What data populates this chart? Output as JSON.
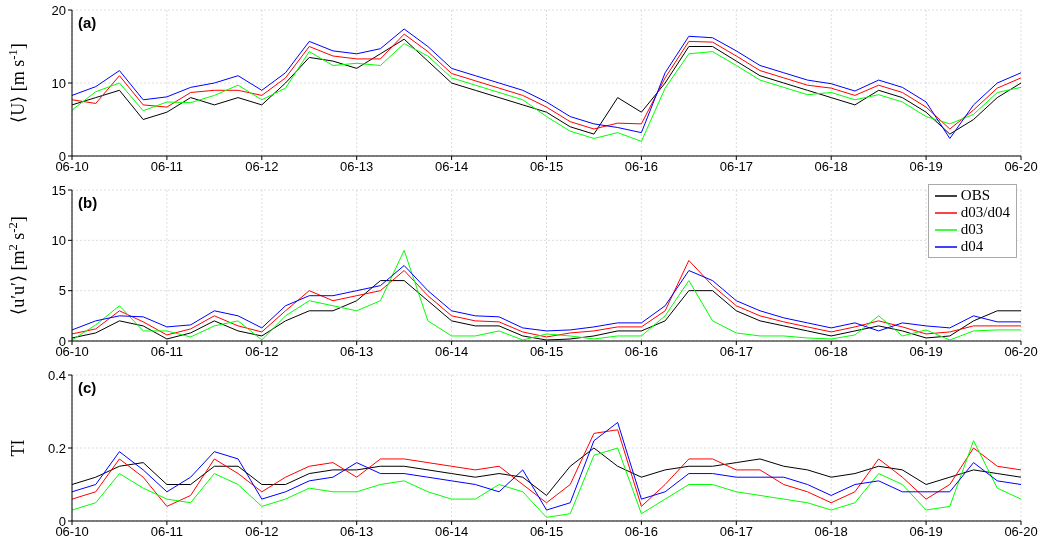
{
  "chart_data": [
    {
      "type": "line",
      "ylabel": "⟨U⟩ [m s$^{-1}$]",
      "annotations": [
        "(a)"
      ],
      "grid": true,
      "line_style": "solid",
      "x": [
        "--06-10T00:00",
        "--06-10T06:00",
        "--06-10T12:00",
        "--06-10T18:00",
        "--06-11T00:00",
        "--06-11T06:00",
        "--06-11T12:00",
        "--06-11T18:00",
        "--06-12T00:00",
        "--06-12T06:00",
        "--06-12T12:00",
        "--06-12T18:00",
        "--06-13T00:00",
        "--06-13T06:00",
        "--06-13T12:00",
        "--06-13T18:00",
        "--06-14T00:00",
        "--06-14T06:00",
        "--06-14T12:00",
        "--06-14T18:00",
        "--06-15T00:00",
        "--06-15T06:00",
        "--06-15T12:00",
        "--06-15T18:00",
        "--06-16T00:00",
        "--06-16T06:00",
        "--06-16T12:00",
        "--06-16T18:00",
        "--06-17T00:00",
        "--06-17T06:00",
        "--06-17T12:00",
        "--06-17T18:00",
        "--06-18T00:00",
        "--06-18T06:00",
        "--06-18T12:00",
        "--06-18T18:00",
        "--06-19T00:00",
        "--06-19T06:00",
        "--06-19T12:00",
        "--06-19T18:00",
        "--06-20T00:00"
      ],
      "xlim": [
        "--06-10",
        "--06-20"
      ],
      "xticks": [
        {
          "value": "--06-10",
          "label": "06-10"
        },
        {
          "value": "--06-11",
          "label": "06-11"
        },
        {
          "value": "--06-12",
          "label": "06-12"
        },
        {
          "value": "--06-13",
          "label": "06-13"
        },
        {
          "value": "--06-14",
          "label": "06-14"
        },
        {
          "value": "--06-15",
          "label": "06-15"
        },
        {
          "value": "--06-16",
          "label": "06-16"
        },
        {
          "value": "--06-17",
          "label": "06-17"
        },
        {
          "value": "--06-18",
          "label": "06-18"
        },
        {
          "value": "--06-19",
          "label": "06-19"
        },
        {
          "value": "--06-20",
          "label": "06-20"
        }
      ],
      "ylim": [
        0,
        20
      ],
      "yticks": [
        0,
        10,
        20
      ],
      "series": [
        {
          "color": "#000000",
          "values": [
            7,
            8,
            9,
            5,
            6,
            8,
            7,
            8,
            7,
            10,
            13.5,
            13,
            12,
            14,
            16,
            13,
            10,
            9,
            8,
            7,
            6,
            4,
            3,
            8,
            6,
            10,
            15,
            15,
            13,
            11,
            10,
            9,
            8,
            7,
            9,
            8,
            6,
            3,
            5,
            8,
            10
          ]
        },
        {
          "color": "#ff0000",
          "values": [
            7.7,
            7.2,
            11,
            7,
            6.7,
            8.7,
            9,
            9,
            8.3,
            10.7,
            15,
            13.7,
            13.3,
            13.3,
            16.7,
            14.3,
            11.3,
            10.3,
            9.3,
            8.3,
            6.7,
            4.7,
            3.7,
            4.5,
            4.4,
            10.7,
            15.7,
            15.6,
            13.7,
            11.7,
            10.7,
            9.7,
            9.3,
            8.3,
            9.7,
            8.7,
            6.7,
            3.7,
            6.3,
            9.3,
            10.7
          ]
        },
        {
          "color": "#00ff00",
          "values": [
            6.3,
            8.8,
            10,
            6.2,
            7.4,
            7.3,
            8.3,
            9.7,
            7.7,
            9.3,
            14.3,
            12.4,
            12.7,
            12.4,
            15.4,
            13.7,
            10.7,
            9.7,
            8.7,
            7.7,
            5.4,
            3.4,
            2.4,
            3.2,
            2,
            9.3,
            14,
            14.3,
            12.4,
            10.4,
            9.4,
            8.4,
            8.7,
            7.7,
            8.4,
            7.4,
            5.4,
            4.4,
            5.7,
            8.7,
            9.4
          ]
        },
        {
          "color": "#0000ff",
          "values": [
            8.3,
            9.5,
            11.7,
            7.7,
            8.1,
            9.4,
            10,
            11,
            9,
            11.4,
            15.7,
            14.4,
            14,
            14.7,
            17.4,
            15,
            12,
            11,
            10,
            9,
            7.4,
            5.4,
            4.4,
            3.9,
            3.2,
            11.4,
            16.4,
            16.2,
            14.4,
            12.4,
            11.4,
            10.4,
            9.9,
            8.9,
            10.4,
            9.4,
            7.4,
            2.4,
            7,
            10,
            11.4
          ]
        }
      ]
    },
    {
      "type": "line",
      "ylabel": "⟨u′u′⟩ [m$^{2}$ s$^{-2}$]",
      "annotations": [
        "(b)"
      ],
      "grid": true,
      "line_style": "solid",
      "legend": "top right",
      "x": [
        "--06-10T00:00",
        "--06-10T06:00",
        "--06-10T12:00",
        "--06-10T18:00",
        "--06-11T00:00",
        "--06-11T06:00",
        "--06-11T12:00",
        "--06-11T18:00",
        "--06-12T00:00",
        "--06-12T06:00",
        "--06-12T12:00",
        "--06-12T18:00",
        "--06-13T00:00",
        "--06-13T06:00",
        "--06-13T12:00",
        "--06-13T18:00",
        "--06-14T00:00",
        "--06-14T06:00",
        "--06-14T12:00",
        "--06-14T18:00",
        "--06-15T00:00",
        "--06-15T06:00",
        "--06-15T12:00",
        "--06-15T18:00",
        "--06-16T00:00",
        "--06-16T06:00",
        "--06-16T12:00",
        "--06-16T18:00",
        "--06-17T00:00",
        "--06-17T06:00",
        "--06-17T12:00",
        "--06-17T18:00",
        "--06-18T00:00",
        "--06-18T06:00",
        "--06-18T12:00",
        "--06-18T18:00",
        "--06-19T00:00",
        "--06-19T06:00",
        "--06-19T12:00",
        "--06-19T18:00",
        "--06-20T00:00"
      ],
      "xlim": [
        "--06-10",
        "--06-20"
      ],
      "xticks": [
        {
          "value": "--06-10",
          "label": "06-10"
        },
        {
          "value": "--06-11",
          "label": "06-11"
        },
        {
          "value": "--06-12",
          "label": "06-12"
        },
        {
          "value": "--06-13",
          "label": "06-13"
        },
        {
          "value": "--06-14",
          "label": "06-14"
        },
        {
          "value": "--06-15",
          "label": "06-15"
        },
        {
          "value": "--06-16",
          "label": "06-16"
        },
        {
          "value": "--06-17",
          "label": "06-17"
        },
        {
          "value": "--06-18",
          "label": "06-18"
        },
        {
          "value": "--06-19",
          "label": "06-19"
        },
        {
          "value": "--06-20",
          "label": "06-20"
        }
      ],
      "ylim": [
        0,
        15
      ],
      "yticks": [
        0,
        5,
        10,
        15
      ],
      "series": [
        {
          "name": "OBS",
          "color": "#000000",
          "values": [
            0.3,
            0.8,
            2,
            1.5,
            0.2,
            0.8,
            2,
            1,
            0.5,
            2,
            3,
            3,
            4,
            6,
            6,
            4,
            2,
            1.5,
            1.5,
            0.5,
            0.1,
            0.2,
            0.5,
            1,
            1,
            2,
            5,
            5,
            3,
            2,
            1.5,
            1,
            0.5,
            1,
            1.5,
            1,
            0.3,
            0.5,
            2,
            3,
            3
          ]
        },
        {
          "name": "d03/d04",
          "color": "#ff0000",
          "values": [
            0.7,
            1.2,
            3,
            1.9,
            0.6,
            1.2,
            2.5,
            1.5,
            0.9,
            3,
            5,
            4,
            4.5,
            5,
            7,
            4.5,
            2.5,
            2,
            1.9,
            0.9,
            0.4,
            0.8,
            1,
            1.4,
            1.4,
            3,
            8,
            5.5,
            3.5,
            2.5,
            1.9,
            1.4,
            0.9,
            1.4,
            2,
            1.4,
            0.7,
            0.9,
            1.5,
            1.5,
            1.5
          ]
        },
        {
          "name": "d03",
          "color": "#00ff00",
          "values": [
            0.1,
            1.6,
            3.5,
            1,
            1,
            0.4,
            1.5,
            2,
            0.1,
            2.5,
            4,
            3.5,
            3,
            4,
            9,
            2,
            0.5,
            0.5,
            1,
            0.1,
            0.7,
            0.5,
            0.2,
            0.5,
            0.5,
            2.5,
            6,
            2,
            0.8,
            0.5,
            0.5,
            0.3,
            0.2,
            0.6,
            2.5,
            0.5,
            1.1,
            0.1,
            1,
            1.1,
            1.1
          ]
        },
        {
          "name": "d04",
          "color": "#0000ff",
          "values": [
            1.1,
            2,
            2.5,
            2.4,
            1.4,
            1.6,
            3,
            2.5,
            1.3,
            3.5,
            4.5,
            4.5,
            5,
            5.5,
            7.5,
            5,
            3,
            2.5,
            2.4,
            1.3,
            1,
            1.1,
            1.4,
            1.8,
            1.8,
            3.5,
            7,
            6,
            4,
            3,
            2.3,
            1.8,
            1.3,
            1.8,
            1,
            1.8,
            1.5,
            1.3,
            2.5,
            1.9,
            1.9
          ]
        }
      ]
    },
    {
      "type": "line",
      "ylabel": "TI",
      "annotations": [
        "(c)"
      ],
      "grid": true,
      "line_style": "solid",
      "x": [
        "--06-10T00:00",
        "--06-10T06:00",
        "--06-10T12:00",
        "--06-10T18:00",
        "--06-11T00:00",
        "--06-11T06:00",
        "--06-11T12:00",
        "--06-11T18:00",
        "--06-12T00:00",
        "--06-12T06:00",
        "--06-12T12:00",
        "--06-12T18:00",
        "--06-13T00:00",
        "--06-13T06:00",
        "--06-13T12:00",
        "--06-13T18:00",
        "--06-14T00:00",
        "--06-14T06:00",
        "--06-14T12:00",
        "--06-14T18:00",
        "--06-15T00:00",
        "--06-15T06:00",
        "--06-15T12:00",
        "--06-15T18:00",
        "--06-16T00:00",
        "--06-16T06:00",
        "--06-16T12:00",
        "--06-16T18:00",
        "--06-17T00:00",
        "--06-17T06:00",
        "--06-17T12:00",
        "--06-17T18:00",
        "--06-18T00:00",
        "--06-18T06:00",
        "--06-18T12:00",
        "--06-18T18:00",
        "--06-19T00:00",
        "--06-19T06:00",
        "--06-19T12:00",
        "--06-19T18:00",
        "--06-20T00:00"
      ],
      "xlim": [
        "--06-10",
        "--06-20"
      ],
      "xticks": [
        {
          "value": "--06-10",
          "label": "06-10"
        },
        {
          "value": "--06-11",
          "label": "06-11"
        },
        {
          "value": "--06-12",
          "label": "06-12"
        },
        {
          "value": "--06-13",
          "label": "06-13"
        },
        {
          "value": "--06-14",
          "label": "06-14"
        },
        {
          "value": "--06-15",
          "label": "06-15"
        },
        {
          "value": "--06-16",
          "label": "06-16"
        },
        {
          "value": "--06-17",
          "label": "06-17"
        },
        {
          "value": "--06-18",
          "label": "06-18"
        },
        {
          "value": "--06-19",
          "label": "06-19"
        },
        {
          "value": "--06-20",
          "label": "06-20"
        }
      ],
      "ylim": [
        0,
        0.4
      ],
      "yticks": [
        0,
        0.2,
        0.4
      ],
      "series": [
        {
          "color": "#000000",
          "values": [
            0.1,
            0.12,
            0.15,
            0.16,
            0.1,
            0.1,
            0.15,
            0.15,
            0.1,
            0.1,
            0.13,
            0.14,
            0.14,
            0.15,
            0.15,
            0.14,
            0.13,
            0.12,
            0.13,
            0.12,
            0.07,
            0.15,
            0.2,
            0.15,
            0.12,
            0.14,
            0.15,
            0.15,
            0.16,
            0.17,
            0.15,
            0.14,
            0.12,
            0.13,
            0.15,
            0.14,
            0.1,
            0.12,
            0.14,
            0.13,
            0.12
          ]
        },
        {
          "color": "#ff0000",
          "values": [
            0.06,
            0.08,
            0.17,
            0.12,
            0.04,
            0.07,
            0.17,
            0.13,
            0.08,
            0.12,
            0.15,
            0.16,
            0.12,
            0.17,
            0.17,
            0.16,
            0.15,
            0.14,
            0.15,
            0.1,
            0.05,
            0.1,
            0.24,
            0.25,
            0.04,
            0.1,
            0.17,
            0.17,
            0.14,
            0.14,
            0.1,
            0.08,
            0.05,
            0.08,
            0.17,
            0.12,
            0.06,
            0.1,
            0.2,
            0.15,
            0.14
          ]
        },
        {
          "color": "#00ff00",
          "values": [
            0.03,
            0.05,
            0.13,
            0.09,
            0.06,
            0.05,
            0.13,
            0.1,
            0.04,
            0.06,
            0.09,
            0.08,
            0.08,
            0.1,
            0.11,
            0.08,
            0.06,
            0.06,
            0.1,
            0.08,
            0.01,
            0.02,
            0.18,
            0.2,
            0.02,
            0.06,
            0.1,
            0.1,
            0.08,
            0.07,
            0.06,
            0.05,
            0.03,
            0.05,
            0.13,
            0.1,
            0.03,
            0.04,
            0.22,
            0.09,
            0.06
          ]
        },
        {
          "color": "#0000ff",
          "values": [
            0.08,
            0.1,
            0.19,
            0.14,
            0.08,
            0.12,
            0.19,
            0.17,
            0.06,
            0.08,
            0.11,
            0.12,
            0.16,
            0.13,
            0.13,
            0.12,
            0.11,
            0.1,
            0.08,
            0.14,
            0.03,
            0.05,
            0.22,
            0.27,
            0.06,
            0.08,
            0.13,
            0.13,
            0.12,
            0.12,
            0.12,
            0.1,
            0.07,
            0.1,
            0.11,
            0.08,
            0.08,
            0.08,
            0.16,
            0.11,
            0.1
          ]
        }
      ]
    }
  ]
}
